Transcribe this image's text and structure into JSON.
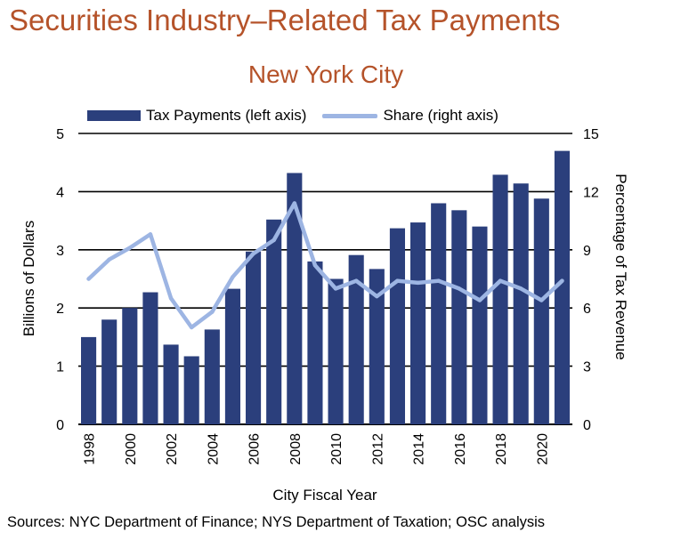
{
  "title": "Securities Industry–Related Tax Payments",
  "subtitle": "New York City",
  "source": "Sources: NYC Department of Finance; NYS Department of Taxation; OSC analysis",
  "chart_data": {
    "type": "bar",
    "x": [
      1998,
      1999,
      2000,
      2001,
      2002,
      2003,
      2004,
      2005,
      2006,
      2007,
      2008,
      2009,
      2010,
      2011,
      2012,
      2013,
      2014,
      2015,
      2016,
      2017,
      2018,
      2019,
      2020,
      2021
    ],
    "x_tick_labels": [
      "1998",
      "2000",
      "2002",
      "2004",
      "2006",
      "2008",
      "2010",
      "2012",
      "2014",
      "2016",
      "2018",
      "2020"
    ],
    "xlabel": "City Fiscal Year",
    "ylabel": "Billions of Dollars",
    "y2label": "Percentage of Tax Revenue",
    "ylim": [
      0,
      5
    ],
    "y2lim": [
      0,
      15
    ],
    "y_ticks": [
      "0",
      "1",
      "2",
      "3",
      "4",
      "5"
    ],
    "y2_ticks": [
      "0",
      "3",
      "6",
      "9",
      "12",
      "15"
    ],
    "grid": "horizontal",
    "legend_position": "top",
    "series": [
      {
        "name": "Tax Payments (left axis)",
        "kind": "bar",
        "axis": "left",
        "color": "#2b3f7c",
        "values": [
          1.5,
          1.8,
          2.0,
          2.27,
          1.37,
          1.17,
          1.63,
          2.33,
          2.97,
          3.52,
          4.32,
          2.8,
          2.5,
          2.91,
          2.67,
          3.37,
          3.47,
          3.8,
          3.68,
          3.4,
          4.29,
          4.14,
          3.88,
          4.7
        ]
      },
      {
        "name": "Share (right axis)",
        "kind": "line",
        "axis": "right",
        "color": "#9db5e3",
        "values": [
          7.5,
          8.5,
          9.1,
          9.8,
          6.5,
          5.0,
          5.8,
          7.6,
          8.8,
          9.5,
          11.4,
          8.2,
          7.0,
          7.4,
          6.6,
          7.4,
          7.3,
          7.4,
          7.0,
          6.4,
          7.4,
          7.0,
          6.4,
          7.4
        ]
      }
    ]
  }
}
